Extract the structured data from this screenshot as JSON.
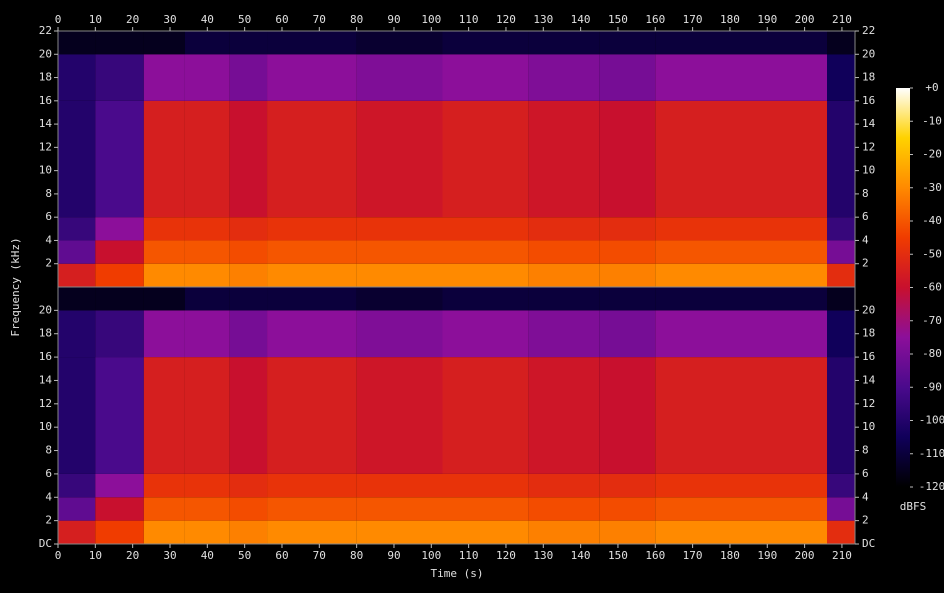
{
  "chart_data": {
    "type": "spectrogram",
    "xlabel": "Time (s)",
    "ylabel": "Frequency (kHz)",
    "xlim": [
      0,
      213.5
    ],
    "xticks": [
      0,
      10,
      20,
      30,
      40,
      50,
      60,
      70,
      80,
      90,
      100,
      110,
      120,
      130,
      140,
      150,
      160,
      170,
      180,
      190,
      200,
      210
    ],
    "ylim": [
      0,
      22
    ],
    "time_edges": [
      0,
      10,
      23,
      34,
      46,
      56,
      80,
      103,
      126,
      145,
      160,
      206,
      213.5
    ],
    "freq_edges": [
      0,
      2,
      4,
      6,
      16,
      20,
      22
    ],
    "colormap": [
      "#000000",
      "#10005a",
      "#4a0a8c",
      "#8c0f9a",
      "#c8102e",
      "#f03c00",
      "#ff8a00",
      "#ffd200",
      "#ffffff"
    ],
    "colorbar": {
      "label": "dBFS",
      "lim": [
        -120,
        0
      ],
      "ticks": [
        {
          "value": 0,
          "label": "+0"
        },
        -10,
        -20,
        -30,
        -40,
        -50,
        -60,
        -70,
        -80,
        -90,
        -100,
        -110,
        -120
      ]
    },
    "channels": [
      {
        "yticks": [
          2,
          4,
          6,
          8,
          10,
          12,
          14,
          16,
          18,
          20,
          22
        ],
        "values": [
          [
            -55,
            -85,
            -95,
            -100,
            -100,
            -115
          ],
          [
            -45,
            -60,
            -75,
            -90,
            -95,
            -115
          ],
          [
            -30,
            -40,
            -48,
            -55,
            -75,
            -115
          ],
          [
            -30,
            -40,
            -48,
            -55,
            -75,
            -110
          ],
          [
            -32,
            -42,
            -50,
            -60,
            -80,
            -110
          ],
          [
            -30,
            -40,
            -48,
            -55,
            -75,
            -110
          ],
          [
            -30,
            -40,
            -48,
            -58,
            -78,
            -112
          ],
          [
            -30,
            -40,
            -48,
            -55,
            -75,
            -110
          ],
          [
            -32,
            -42,
            -50,
            -58,
            -78,
            -110
          ],
          [
            -32,
            -42,
            -50,
            -60,
            -80,
            -110
          ],
          [
            -30,
            -40,
            -48,
            -55,
            -75,
            -110
          ],
          [
            -50,
            -80,
            -95,
            -100,
            -105,
            -115
          ]
        ]
      },
      {
        "yticks": [
          {
            "value": 0,
            "label": "DC"
          },
          2,
          4,
          6,
          8,
          10,
          12,
          14,
          16,
          18,
          20
        ],
        "values": [
          [
            -55,
            -85,
            -95,
            -100,
            -100,
            -115
          ],
          [
            -45,
            -60,
            -75,
            -90,
            -95,
            -115
          ],
          [
            -30,
            -40,
            -48,
            -55,
            -75,
            -115
          ],
          [
            -30,
            -40,
            -48,
            -55,
            -75,
            -110
          ],
          [
            -32,
            -42,
            -50,
            -60,
            -80,
            -110
          ],
          [
            -30,
            -40,
            -48,
            -55,
            -75,
            -110
          ],
          [
            -30,
            -40,
            -48,
            -58,
            -78,
            -112
          ],
          [
            -30,
            -40,
            -48,
            -55,
            -75,
            -110
          ],
          [
            -32,
            -42,
            -50,
            -58,
            -78,
            -110
          ],
          [
            -32,
            -42,
            -50,
            -60,
            -80,
            -110
          ],
          [
            -30,
            -40,
            -48,
            -55,
            -75,
            -110
          ],
          [
            -50,
            -80,
            -95,
            -100,
            -105,
            -115
          ]
        ]
      }
    ]
  }
}
